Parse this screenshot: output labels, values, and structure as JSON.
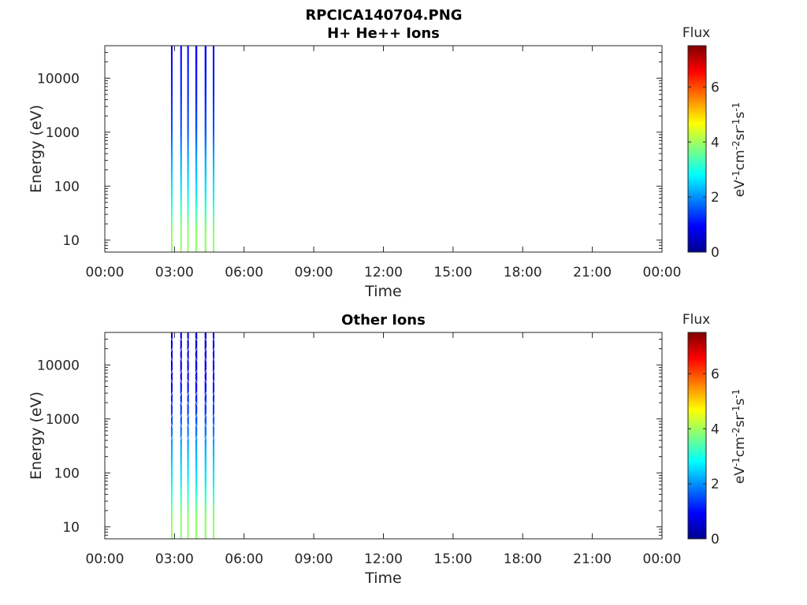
{
  "figure_title": "RPCICA140704.PNG",
  "colormap": [
    "#00008f",
    "#0000ff",
    "#007fff",
    "#00ffff",
    "#7fff7f",
    "#ffff00",
    "#ff7f00",
    "#ff0000",
    "#7f0000"
  ],
  "chart_data": [
    {
      "type": "heatmap",
      "title": "H+ He++ Ions",
      "xlabel": "Time",
      "ylabel": "Energy (eV)",
      "x_ticks": [
        "00:00",
        "03:00",
        "06:00",
        "09:00",
        "12:00",
        "15:00",
        "18:00",
        "21:00",
        "00:00"
      ],
      "x_range_hours": [
        0,
        24
      ],
      "y_scale": "log",
      "y_range": [
        6,
        40000
      ],
      "y_ticks": [
        "10",
        "100",
        "1000",
        "10000"
      ],
      "colorbar": {
        "label": "Flux",
        "units_base": [
          "eV",
          "cm",
          "sr",
          "s"
        ],
        "units_exp": [
          "-1",
          "-2",
          "-1",
          "-1"
        ],
        "range": [
          0,
          7.5
        ],
        "ticks": [
          "0",
          "2",
          "4",
          "6"
        ]
      },
      "data_bursts_hours": [
        [
          2.85,
          2.92
        ],
        [
          3.25,
          3.32
        ],
        [
          3.55,
          3.62
        ],
        [
          3.9,
          3.98
        ],
        [
          4.3,
          4.38
        ],
        [
          4.65,
          4.72
        ]
      ],
      "flux_profile": [
        {
          "energy": 6,
          "flux": 3.9
        },
        {
          "energy": 15,
          "flux": 3.9
        },
        {
          "energy": 40,
          "flux": 3.2
        },
        {
          "energy": 100,
          "flux": 2.6
        },
        {
          "energy": 300,
          "flux": 2.2
        },
        {
          "energy": 1000,
          "flux": 1.6
        },
        {
          "energy": 5000,
          "flux": 1.2
        },
        {
          "energy": 40000,
          "flux": 0.9
        }
      ]
    },
    {
      "type": "heatmap",
      "title": "Other Ions",
      "xlabel": "Time",
      "ylabel": "Energy (eV)",
      "x_ticks": [
        "00:00",
        "03:00",
        "06:00",
        "09:00",
        "12:00",
        "15:00",
        "18:00",
        "21:00",
        "00:00"
      ],
      "x_range_hours": [
        0,
        24
      ],
      "y_scale": "log",
      "y_range": [
        6,
        40000
      ],
      "y_ticks": [
        "10",
        "100",
        "1000",
        "10000"
      ],
      "colorbar": {
        "label": "Flux",
        "units_base": [
          "eV",
          "cm",
          "sr",
          "s"
        ],
        "units_exp": [
          "-1",
          "-2",
          "-1",
          "-1"
        ],
        "range": [
          0,
          7.5
        ],
        "ticks": [
          "0",
          "2",
          "4",
          "6"
        ]
      },
      "data_bursts_hours": [
        [
          2.85,
          2.92
        ],
        [
          3.25,
          3.32
        ],
        [
          3.55,
          3.62
        ],
        [
          3.9,
          3.98
        ],
        [
          4.3,
          4.38
        ],
        [
          4.65,
          4.72
        ]
      ],
      "flux_profile": [
        {
          "energy": 6,
          "flux": 3.9
        },
        {
          "energy": 15,
          "flux": 3.9
        },
        {
          "energy": 40,
          "flux": 3.2
        },
        {
          "energy": 100,
          "flux": 2.6
        },
        {
          "energy": 300,
          "flux": 2.2
        },
        {
          "energy": 1000,
          "flux": 1.5
        },
        {
          "energy": 5000,
          "flux": 0.9
        },
        {
          "energy": 40000,
          "flux": 0.6
        }
      ]
    }
  ]
}
